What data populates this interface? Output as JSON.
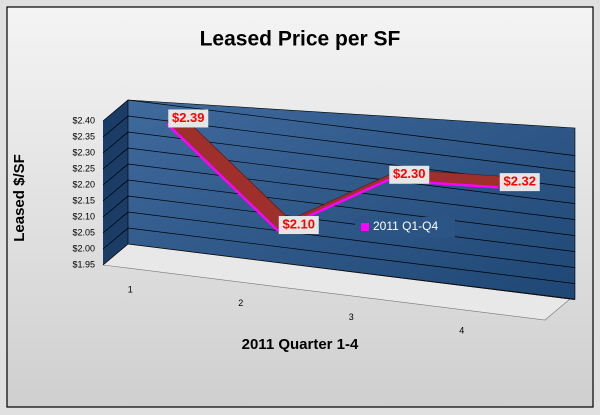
{
  "chart_data": {
    "type": "line3d",
    "title": "Leased Price per SF",
    "y_label": "Leased $/SF",
    "x_label": "2011 Quarter 1-4",
    "categories": [
      "1",
      "2",
      "3",
      "4"
    ],
    "series": [
      {
        "name": "2011 Q1-Q4",
        "color": "#ff00ff",
        "ribbon_color": "#9e2f2a",
        "values": [
          2.39,
          2.1,
          2.3,
          2.32
        ],
        "value_labels": [
          "$2.39",
          "$2.10",
          "$2.30",
          "$2.32"
        ]
      }
    ],
    "ylim": [
      1.95,
      2.4
    ],
    "yticks": [
      {
        "value": 1.95,
        "label": "$1.95"
      },
      {
        "value": 2.0,
        "label": "$2.00"
      },
      {
        "value": 2.05,
        "label": "$2.05"
      },
      {
        "value": 2.1,
        "label": "$2.10"
      },
      {
        "value": 2.15,
        "label": "$2.15"
      },
      {
        "value": 2.2,
        "label": "$2.20"
      },
      {
        "value": 2.25,
        "label": "$2.25"
      },
      {
        "value": 2.3,
        "label": "$2.30"
      },
      {
        "value": 2.35,
        "label": "$2.35"
      },
      {
        "value": 2.4,
        "label": "$2.40"
      }
    ],
    "grid": true
  }
}
